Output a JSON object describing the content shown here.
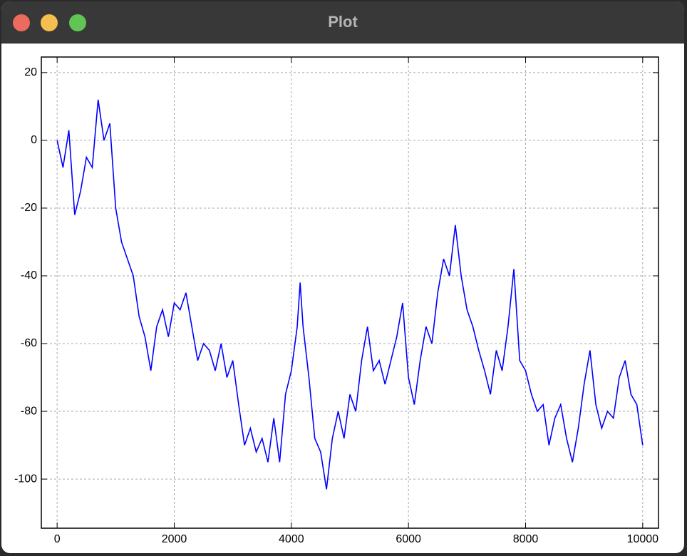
{
  "window": {
    "title": "Plot"
  },
  "chart_data": {
    "type": "line",
    "x": [
      0,
      100,
      200,
      300,
      400,
      500,
      600,
      700,
      800,
      900,
      1000,
      1100,
      1200,
      1300,
      1400,
      1500,
      1600,
      1700,
      1800,
      1900,
      2000,
      2100,
      2200,
      2300,
      2400,
      2500,
      2600,
      2700,
      2800,
      2900,
      3000,
      3100,
      3200,
      3300,
      3400,
      3500,
      3600,
      3700,
      3800,
      3900,
      4000,
      4100,
      4150,
      4200,
      4300,
      4400,
      4500,
      4600,
      4700,
      4800,
      4900,
      5000,
      5100,
      5200,
      5300,
      5400,
      5500,
      5600,
      5700,
      5800,
      5900,
      6000,
      6100,
      6200,
      6300,
      6400,
      6500,
      6600,
      6700,
      6800,
      6900,
      7000,
      7100,
      7200,
      7300,
      7400,
      7500,
      7600,
      7700,
      7800,
      7900,
      8000,
      8100,
      8200,
      8300,
      8400,
      8500,
      8600,
      8700,
      8800,
      8900,
      9000,
      9100,
      9200,
      9300,
      9400,
      9500,
      9600,
      9700,
      9800,
      9900,
      10000
    ],
    "values": [
      0,
      -8,
      3,
      -22,
      -15,
      -5,
      -8,
      12,
      0,
      5,
      -20,
      -30,
      -35,
      -40,
      -52,
      -58,
      -68,
      -55,
      -50,
      -58,
      -48,
      -50,
      -45,
      -55,
      -65,
      -60,
      -62,
      -68,
      -60,
      -70,
      -65,
      -78,
      -90,
      -85,
      -92,
      -88,
      -95,
      -82,
      -95,
      -75,
      -68,
      -55,
      -42,
      -55,
      -70,
      -88,
      -92,
      -103,
      -88,
      -80,
      -88,
      -75,
      -80,
      -65,
      -55,
      -68,
      -65,
      -72,
      -65,
      -58,
      -48,
      -70,
      -78,
      -65,
      -55,
      -60,
      -45,
      -35,
      -40,
      -25,
      -40,
      -50,
      -55,
      -62,
      -68,
      -75,
      -62,
      -68,
      -55,
      -38,
      -65,
      -68,
      -75,
      -80,
      -78,
      -90,
      -82,
      -78,
      -88,
      -95,
      -85,
      -72,
      -62,
      -78,
      -85,
      -80,
      -82,
      -70,
      -65,
      -75,
      -78,
      -90
    ],
    "color": "#0000ff",
    "xlim": [
      -270,
      10270
    ],
    "ylim": [
      -114.5,
      24.6
    ],
    "xticks": [
      0,
      2000,
      4000,
      6000,
      8000,
      10000
    ],
    "yticks": [
      20,
      0,
      -20,
      -40,
      -60,
      -80,
      -100
    ],
    "grid": true
  }
}
